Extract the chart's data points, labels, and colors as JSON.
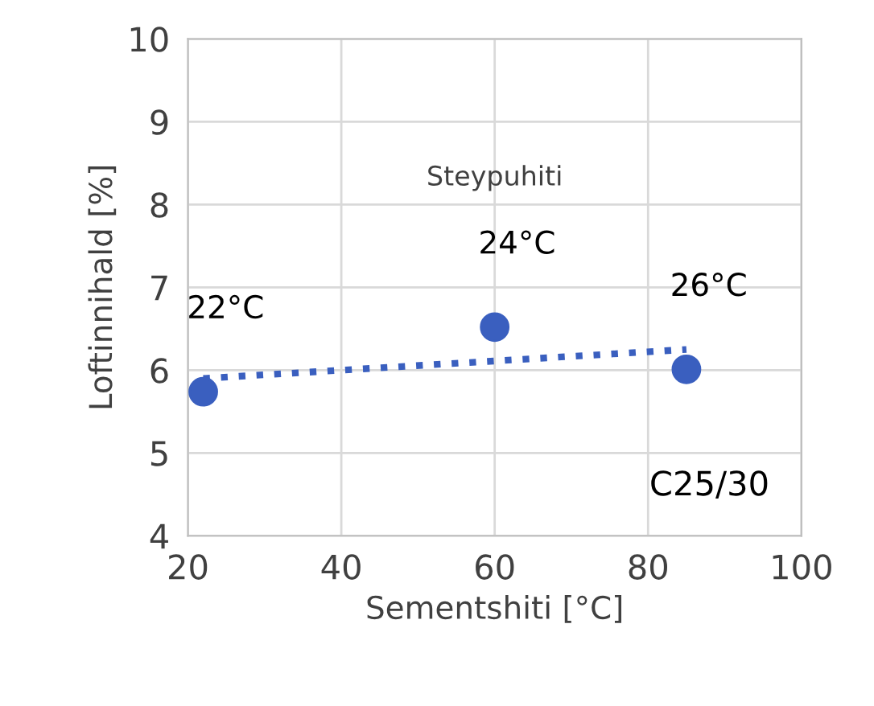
{
  "chart_data": {
    "type": "scatter",
    "xlabel": "Sementshiti [°C]",
    "ylabel": "Loftinnihald [%]",
    "x": [
      22,
      60,
      85
    ],
    "series": [
      {
        "color": "#3a5fbf",
        "values": [
          5.74,
          6.52,
          6.01
        ],
        "marker": "circle"
      },
      {
        "type": "line",
        "color": "#3a5fbf",
        "x": [
          22,
          85
        ],
        "values": [
          5.9,
          6.25
        ],
        "line_style": "dotted",
        "marker": "none"
      }
    ],
    "xlim": [
      20,
      100
    ],
    "xticks": [
      20,
      40,
      60,
      80,
      100
    ],
    "ylim": [
      4,
      10
    ],
    "yticks": [
      4,
      5,
      6,
      7,
      8,
      9,
      10
    ],
    "grid": true,
    "annotations": [
      "Steypuhiti",
      {
        "text": "22°C",
        "x": 22,
        "y": 5.74
      },
      {
        "text": "24°C",
        "x": 60,
        "y": 6.52
      },
      {
        "text": "26°C",
        "x": 85,
        "y": 6.01
      },
      "C25/30"
    ]
  }
}
